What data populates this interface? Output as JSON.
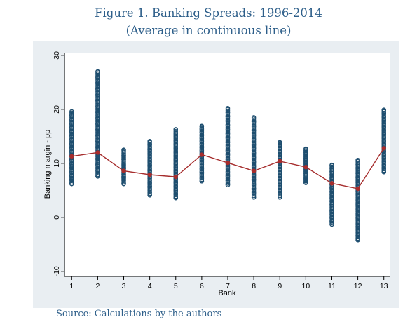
{
  "figure": {
    "title_line1": "Figure 1.  Banking Spreads: 1996-2014",
    "title_line2": "(Average in continuous line)",
    "source": "Source: Calculations by the authors"
  },
  "colors": {
    "panel_bg": "#e9eef2",
    "plot_bg": "#ffffff",
    "marker": "#1e4e6f",
    "avg_line": "#a62d2d",
    "avg_marker": "#a62d2d",
    "title_text": "#2e5f8a"
  },
  "chart_data": {
    "type": "scatter",
    "title": "",
    "xlabel": "Bank",
    "ylabel": "Banking margin - pp",
    "xlim": [
      0.75,
      13.25
    ],
    "ylim": [
      -10.8,
      30.5
    ],
    "x_ticks": [
      1,
      2,
      3,
      4,
      5,
      6,
      7,
      8,
      9,
      10,
      11,
      12,
      13
    ],
    "y_ticks": [
      -10,
      0,
      10,
      20,
      30
    ],
    "grid": false,
    "legend": "none",
    "series": [
      {
        "type": "scatter",
        "x": [
          1,
          2,
          3,
          4,
          5,
          6,
          7,
          8,
          9,
          10,
          11,
          12,
          13
        ],
        "ranges": [
          [
            6.2,
            19.6
          ],
          [
            7.6,
            27.0
          ],
          [
            6.2,
            12.5
          ],
          [
            4.1,
            14.1
          ],
          [
            3.6,
            16.3
          ],
          [
            6.7,
            16.9
          ],
          [
            6.0,
            20.2
          ],
          [
            3.7,
            18.5
          ],
          [
            3.7,
            13.9
          ],
          [
            6.4,
            12.7
          ],
          [
            -1.3,
            9.7
          ],
          [
            -4.2,
            10.6
          ],
          [
            8.4,
            19.9
          ]
        ]
      },
      {
        "type": "line",
        "x": [
          1,
          2,
          3,
          4,
          5,
          6,
          7,
          8,
          9,
          10,
          11,
          12,
          13
        ],
        "values": [
          11.3,
          12.0,
          8.6,
          7.9,
          7.5,
          11.6,
          10.1,
          8.6,
          10.4,
          9.3,
          6.3,
          5.3,
          12.8
        ]
      }
    ]
  }
}
